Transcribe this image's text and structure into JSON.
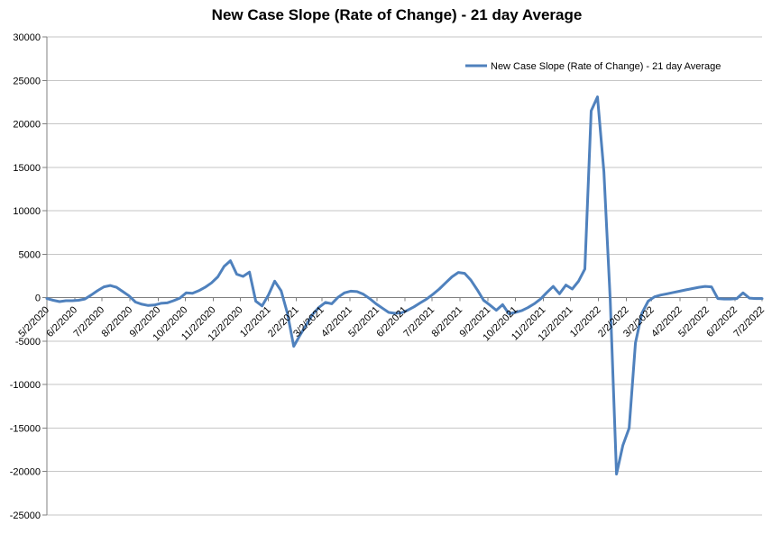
{
  "chart_data": {
    "type": "line",
    "title": "New Case Slope (Rate of Change) - 21 day Average",
    "legend": {
      "label": "New Case Slope (Rate of Change) - 21 day Average",
      "position": "top-right"
    },
    "grid": "horizontal",
    "gridline_color": "#C6C6C6",
    "axis_color": "#808080",
    "text_color": "#000000",
    "ylim": [
      -25000,
      30000
    ],
    "y_ticks": [
      30000,
      25000,
      20000,
      15000,
      10000,
      5000,
      0,
      -5000,
      -10000,
      -15000,
      -20000,
      -25000
    ],
    "x_tick_labels": [
      "5/2/2020",
      "6/2/2020",
      "7/2/2020",
      "8/2/2020",
      "9/2/2020",
      "10/2/2020",
      "11/2/2020",
      "12/2/2020",
      "1/2/2021",
      "2/2/2021",
      "3/2/2021",
      "4/2/2021",
      "5/2/2021",
      "6/2/2021",
      "7/2/2021",
      "8/2/2021",
      "9/2/2021",
      "10/2/2021",
      "11/2/2021",
      "12/2/2021",
      "1/2/2022",
      "2/2/2022",
      "3/2/2022",
      "4/2/2022",
      "5/2/2022",
      "6/2/2022",
      "7/2/2022"
    ],
    "label_rotation_deg": 45,
    "series": [
      {
        "name": "New Case Slope (Rate of Change) - 21 day Average",
        "color": "#4F81BD",
        "start_date": "5/2/2020",
        "interval_days": 7,
        "values": [
          -100,
          -300,
          -450,
          -350,
          -350,
          -300,
          -150,
          300,
          800,
          1250,
          1400,
          1200,
          700,
          200,
          -500,
          -750,
          -900,
          -850,
          -650,
          -600,
          -350,
          -50,
          550,
          500,
          800,
          1200,
          1700,
          2400,
          3600,
          4250,
          2700,
          2450,
          2950,
          -400,
          -950,
          300,
          1900,
          800,
          -1800,
          -5600,
          -4300,
          -3100,
          -1900,
          -1100,
          -550,
          -700,
          50,
          550,
          750,
          700,
          400,
          -100,
          -700,
          -1200,
          -1700,
          -1800,
          -1750,
          -1450,
          -1050,
          -600,
          -150,
          400,
          1000,
          1700,
          2400,
          2900,
          2800,
          2000,
          900,
          -300,
          -850,
          -1450,
          -800,
          -1850,
          -1700,
          -1500,
          -1150,
          -700,
          -150,
          600,
          1300,
          450,
          1450,
          1000,
          1900,
          3300,
          21500,
          23100,
          14500,
          -200,
          -20300,
          -17000,
          -15000,
          -5200,
          -1800,
          -400,
          100,
          300,
          450,
          600,
          750,
          900,
          1050,
          1200,
          1300,
          1250,
          -100,
          -150,
          -150,
          -100,
          550,
          -50,
          -100,
          -100
        ]
      }
    ]
  }
}
